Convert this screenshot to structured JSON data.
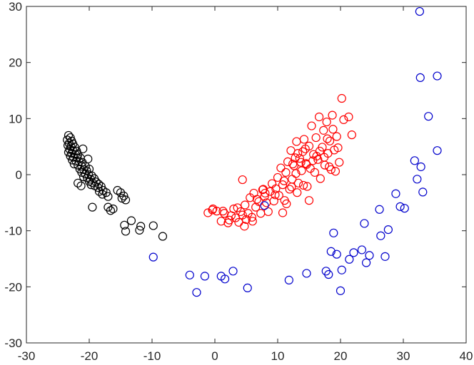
{
  "chart_data": {
    "type": "scatter",
    "title": "",
    "xlabel": "",
    "ylabel": "",
    "xlim": [
      -30,
      40
    ],
    "ylim": [
      -30,
      30
    ],
    "xticks": [
      -30,
      -20,
      -10,
      0,
      10,
      20,
      30,
      40
    ],
    "yticks": [
      -30,
      -20,
      -10,
      0,
      10,
      20,
      30
    ],
    "grid": false,
    "legend": "none",
    "marker": "circle-open",
    "series": [
      {
        "color": "#000000",
        "points": [
          [
            -23.3,
            7.0
          ],
          [
            -23.0,
            6.6
          ],
          [
            -23.5,
            6.2
          ],
          [
            -22.8,
            6.0
          ],
          [
            -23.2,
            5.6
          ],
          [
            -22.6,
            5.5
          ],
          [
            -23.4,
            5.2
          ],
          [
            -22.9,
            5.0
          ],
          [
            -22.3,
            4.9
          ],
          [
            -23.1,
            4.5
          ],
          [
            -22.6,
            4.3
          ],
          [
            -22.0,
            4.2
          ],
          [
            -23.3,
            4.0
          ],
          [
            -22.8,
            3.8
          ],
          [
            -22.2,
            3.6
          ],
          [
            -21.8,
            3.6
          ],
          [
            -23.0,
            3.3
          ],
          [
            -22.5,
            3.1
          ],
          [
            -21.9,
            3.0
          ],
          [
            -21.4,
            3.0
          ],
          [
            -22.7,
            2.6
          ],
          [
            -22.1,
            2.4
          ],
          [
            -21.6,
            2.3
          ],
          [
            -21.1,
            2.2
          ],
          [
            -22.4,
            1.9
          ],
          [
            -21.8,
            1.7
          ],
          [
            -21.2,
            1.5
          ],
          [
            -20.6,
            1.5
          ],
          [
            -21.5,
            1.0
          ],
          [
            -20.9,
            0.9
          ],
          [
            -20.4,
            0.7
          ],
          [
            -20.0,
            1.0
          ],
          [
            -21.2,
            0.4
          ],
          [
            -20.6,
            0.1
          ],
          [
            -20.1,
            0.0
          ],
          [
            -19.6,
            -0.2
          ],
          [
            -20.9,
            -0.4
          ],
          [
            -20.3,
            -0.6
          ],
          [
            -19.8,
            -0.8
          ],
          [
            -19.2,
            -0.7
          ],
          [
            -20.0,
            -1.2
          ],
          [
            -19.5,
            -1.4
          ],
          [
            -18.9,
            -1.3
          ],
          [
            -18.5,
            -1.7
          ],
          [
            -19.7,
            -1.8
          ],
          [
            -19.1,
            -2.0
          ],
          [
            -18.6,
            -2.3
          ],
          [
            -18.1,
            -2.1
          ],
          [
            -17.8,
            -2.8
          ],
          [
            -18.4,
            -3.0
          ],
          [
            -17.3,
            -3.2
          ],
          [
            -17.9,
            -3.5
          ],
          [
            -17.0,
            -3.9
          ],
          [
            -15.5,
            -2.8
          ],
          [
            -15.0,
            -3.2
          ],
          [
            -14.5,
            -3.8
          ],
          [
            -14.2,
            -4.5
          ],
          [
            -14.8,
            -4.2
          ],
          [
            -21.8,
            -1.5
          ],
          [
            -21.3,
            -2.0
          ],
          [
            -21.0,
            4.6
          ],
          [
            -20.2,
            2.8
          ],
          [
            -19.5,
            -5.8
          ],
          [
            -17.0,
            -5.8
          ],
          [
            -16.6,
            -6.4
          ],
          [
            -16.2,
            -6.1
          ],
          [
            -14.4,
            -9.0
          ],
          [
            -14.2,
            -10.1
          ],
          [
            -13.3,
            -8.2
          ],
          [
            -12.0,
            -9.9
          ],
          [
            -11.8,
            -9.2
          ],
          [
            -9.8,
            -9.1
          ],
          [
            -8.3,
            -11.0
          ]
        ]
      },
      {
        "color": "#ff0000",
        "points": [
          [
            -1.1,
            -6.8
          ],
          [
            -0.4,
            -6.3
          ],
          [
            0.3,
            -6.5
          ],
          [
            1.0,
            -8.3
          ],
          [
            1.5,
            -6.9
          ],
          [
            2.3,
            -8.1
          ],
          [
            2.6,
            -7.3
          ],
          [
            3.0,
            -6.1
          ],
          [
            3.3,
            -7.7
          ],
          [
            3.8,
            -8.5
          ],
          [
            4.1,
            -6.6
          ],
          [
            4.4,
            -7.2
          ],
          [
            4.7,
            -9.2
          ],
          [
            4.8,
            -5.4
          ],
          [
            5.0,
            -8.0
          ],
          [
            5.3,
            -6.9
          ],
          [
            5.6,
            -4.1
          ],
          [
            5.9,
            -7.6
          ],
          [
            6.2,
            -3.3
          ],
          [
            6.5,
            -5.8
          ],
          [
            7.0,
            -4.8
          ],
          [
            7.3,
            -6.9
          ],
          [
            7.6,
            -2.7
          ],
          [
            7.9,
            -3.9
          ],
          [
            8.2,
            -5.0
          ],
          [
            8.5,
            -6.6
          ],
          [
            8.8,
            -3.0
          ],
          [
            9.1,
            -1.6
          ],
          [
            9.4,
            -4.7
          ],
          [
            9.7,
            -2.5
          ],
          [
            10.0,
            -0.5
          ],
          [
            10.2,
            -3.7
          ],
          [
            10.5,
            1.2
          ],
          [
            10.8,
            -1.8
          ],
          [
            11.1,
            -4.6
          ],
          [
            11.3,
            0.4
          ],
          [
            11.6,
            2.3
          ],
          [
            11.9,
            -2.6
          ],
          [
            12.1,
            4.3
          ],
          [
            12.3,
            -0.8
          ],
          [
            12.6,
            1.6
          ],
          [
            12.8,
            3.0
          ],
          [
            13.0,
            5.9
          ],
          [
            13.3,
            -1.5
          ],
          [
            13.5,
            2.9
          ],
          [
            13.8,
            0.7
          ],
          [
            14.0,
            4.1
          ],
          [
            14.2,
            6.3
          ],
          [
            14.5,
            2.0
          ],
          [
            14.7,
            -2.1
          ],
          [
            15.0,
            5.1
          ],
          [
            15.2,
            1.1
          ],
          [
            15.4,
            8.7
          ],
          [
            15.7,
            3.6
          ],
          [
            15.9,
            0.4
          ],
          [
            16.1,
            6.6
          ],
          [
            16.4,
            2.7
          ],
          [
            16.6,
            10.3
          ],
          [
            16.8,
            -0.7
          ],
          [
            17.1,
            4.9
          ],
          [
            17.3,
            7.9
          ],
          [
            17.5,
            1.7
          ],
          [
            17.8,
            9.4
          ],
          [
            18.0,
            3.8
          ],
          [
            18.3,
            6.0
          ],
          [
            18.5,
            0.9
          ],
          [
            18.8,
            8.1
          ],
          [
            19.0,
            4.4
          ],
          [
            19.4,
            6.8
          ],
          [
            19.8,
            2.2
          ],
          [
            20.2,
            13.6
          ],
          [
            20.5,
            9.8
          ],
          [
            21.3,
            10.3
          ],
          [
            21.8,
            7.1
          ],
          [
            -0.3,
            -6.1
          ],
          [
            1.3,
            -6.5
          ],
          [
            2.1,
            -8.6
          ],
          [
            3.6,
            -5.9
          ],
          [
            6.7,
            -4.4
          ],
          [
            8.0,
            -3.3
          ],
          [
            9.6,
            -3.6
          ],
          [
            11.0,
            -1.1
          ],
          [
            12.4,
            1.9
          ],
          [
            13.2,
            3.8
          ],
          [
            14.4,
            4.6
          ],
          [
            15.6,
            2.5
          ],
          [
            16.7,
            4.2
          ],
          [
            17.4,
            3.1
          ],
          [
            18.2,
            1.4
          ],
          [
            19.2,
            0.6
          ],
          [
            4.4,
            -0.9
          ],
          [
            6.0,
            -8.3
          ],
          [
            7.7,
            -2.6
          ],
          [
            10.8,
            -6.8
          ],
          [
            13.1,
            -3.2
          ],
          [
            14.1,
            -1.9
          ],
          [
            15.0,
            -4.6
          ],
          [
            11.4,
            -5.2
          ],
          [
            12.9,
            0.2
          ],
          [
            14.6,
            1.8
          ],
          [
            16.2,
            3.3
          ],
          [
            17.9,
            6.4
          ],
          [
            19.6,
            4.8
          ],
          [
            18.7,
            10.6
          ],
          [
            12.2,
            -2.2
          ],
          [
            13.7,
            2.2
          ]
        ]
      },
      {
        "color": "#0000cc",
        "points": [
          [
            -9.8,
            -14.7
          ],
          [
            -4.0,
            -17.9
          ],
          [
            -2.9,
            -21.0
          ],
          [
            -1.6,
            -18.1
          ],
          [
            1.0,
            -18.1
          ],
          [
            1.6,
            -18.6
          ],
          [
            2.9,
            -17.2
          ],
          [
            5.2,
            -20.2
          ],
          [
            7.9,
            -5.5
          ],
          [
            11.8,
            -18.8
          ],
          [
            14.6,
            -17.6
          ],
          [
            17.7,
            -17.2
          ],
          [
            18.1,
            -17.8
          ],
          [
            18.5,
            -13.7
          ],
          [
            18.9,
            -10.4
          ],
          [
            19.4,
            -14.2
          ],
          [
            20.0,
            -20.7
          ],
          [
            20.2,
            -17.0
          ],
          [
            21.4,
            -15.1
          ],
          [
            22.1,
            -13.9
          ],
          [
            23.4,
            -13.4
          ],
          [
            23.8,
            -8.7
          ],
          [
            24.1,
            -15.7
          ],
          [
            24.6,
            -14.4
          ],
          [
            26.2,
            -6.2
          ],
          [
            26.4,
            -10.9
          ],
          [
            27.1,
            -14.6
          ],
          [
            27.6,
            -9.8
          ],
          [
            28.8,
            -3.4
          ],
          [
            29.5,
            -5.7
          ],
          [
            30.2,
            -6.0
          ],
          [
            31.8,
            2.5
          ],
          [
            32.2,
            -0.8
          ],
          [
            32.8,
            1.4
          ],
          [
            33.1,
            -3.1
          ],
          [
            32.6,
            29.1
          ],
          [
            32.7,
            17.3
          ],
          [
            34.0,
            10.4
          ],
          [
            35.4,
            17.6
          ],
          [
            35.4,
            4.3
          ]
        ]
      }
    ]
  }
}
